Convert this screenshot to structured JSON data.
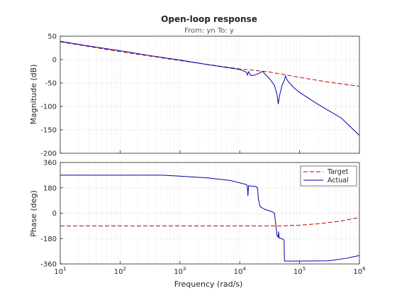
{
  "window": {
    "title": "Open-loop response",
    "subtitle": "From: yn  To: y"
  },
  "chart_data": [
    {
      "type": "line",
      "panel": "magnitude",
      "xscale": "log",
      "xlim": [
        10,
        1000000
      ],
      "ylim": [
        -200,
        50
      ],
      "yticks": [
        50,
        0,
        -50,
        -100,
        -150,
        -200
      ],
      "ylabel": "Magnitude (dB)",
      "grid": true,
      "series": [
        {
          "name": "Target",
          "color": "#c00000",
          "style": "dashed",
          "points": [
            [
              10,
              38
            ],
            [
              100,
              17
            ],
            [
              1000,
              -2
            ],
            [
              10000,
              -20
            ],
            [
              30000,
              -26
            ],
            [
              100000,
              -38
            ],
            [
              300000,
              -48
            ],
            [
              1000000,
              -57
            ]
          ]
        },
        {
          "name": "Actual",
          "color": "#0000b4",
          "style": "solid",
          "points": [
            [
              10,
              39
            ],
            [
              30,
              29
            ],
            [
              100,
              19
            ],
            [
              300,
              9
            ],
            [
              1000,
              -1
            ],
            [
              3000,
              -11
            ],
            [
              10000,
              -21
            ],
            [
              13000,
              -27
            ],
            [
              13500,
              -33
            ],
            [
              14000,
              -26
            ],
            [
              15500,
              -34
            ],
            [
              18000,
              -33
            ],
            [
              22000,
              -28
            ],
            [
              24000,
              -25
            ],
            [
              27000,
              -32
            ],
            [
              32000,
              -42
            ],
            [
              38000,
              -55
            ],
            [
              42000,
              -75
            ],
            [
              44000,
              -95
            ],
            [
              46000,
              -78
            ],
            [
              51000,
              -55
            ],
            [
              56000,
              -43
            ],
            [
              58000,
              -35
            ],
            [
              63000,
              -45
            ],
            [
              80000,
              -60
            ],
            [
              100000,
              -70
            ],
            [
              200000,
              -95
            ],
            [
              500000,
              -125
            ],
            [
              1000000,
              -162
            ]
          ]
        }
      ]
    },
    {
      "type": "line",
      "panel": "phase",
      "xscale": "log",
      "xlim": [
        10,
        1000000
      ],
      "ylim": [
        -360,
        360
      ],
      "yticks": [
        360,
        180,
        0,
        -180,
        -360
      ],
      "xticks": [
        "10^1",
        "10^2",
        "10^3",
        "10^4",
        "10^5",
        "10^6"
      ],
      "ylabel": "Phase (deg)",
      "xlabel": "Frequency  (rad/s)",
      "grid": true,
      "legend": "top-right",
      "series": [
        {
          "name": "Target",
          "color": "#c00000",
          "style": "dashed",
          "points": [
            [
              10,
              -90
            ],
            [
              50000,
              -90
            ],
            [
              100000,
              -85
            ],
            [
              200000,
              -75
            ],
            [
              500000,
              -55
            ],
            [
              1000000,
              -30
            ]
          ]
        },
        {
          "name": "Actual",
          "color": "#0000b4",
          "style": "solid",
          "points": [
            [
              10,
              270
            ],
            [
              500,
              270
            ],
            [
              1000,
              263
            ],
            [
              3000,
              250
            ],
            [
              7000,
              232
            ],
            [
              13000,
              203
            ],
            [
              13400,
              190
            ],
            [
              13700,
              122
            ],
            [
              14000,
              195
            ],
            [
              18000,
              190
            ],
            [
              19500,
              185
            ],
            [
              20000,
              160
            ],
            [
              20500,
              100
            ],
            [
              22000,
              45
            ],
            [
              27000,
              25
            ],
            [
              35000,
              10
            ],
            [
              38000,
              0
            ],
            [
              42000,
              -160
            ],
            [
              44000,
              -170
            ],
            [
              44500,
              -130
            ],
            [
              45500,
              -175
            ],
            [
              50000,
              -180
            ],
            [
              55000,
              -190
            ],
            [
              56000,
              -340
            ],
            [
              58000,
              -340
            ],
            [
              100000,
              -340
            ],
            [
              300000,
              -338
            ],
            [
              600000,
              -320
            ],
            [
              1000000,
              -300
            ]
          ]
        }
      ]
    }
  ]
}
